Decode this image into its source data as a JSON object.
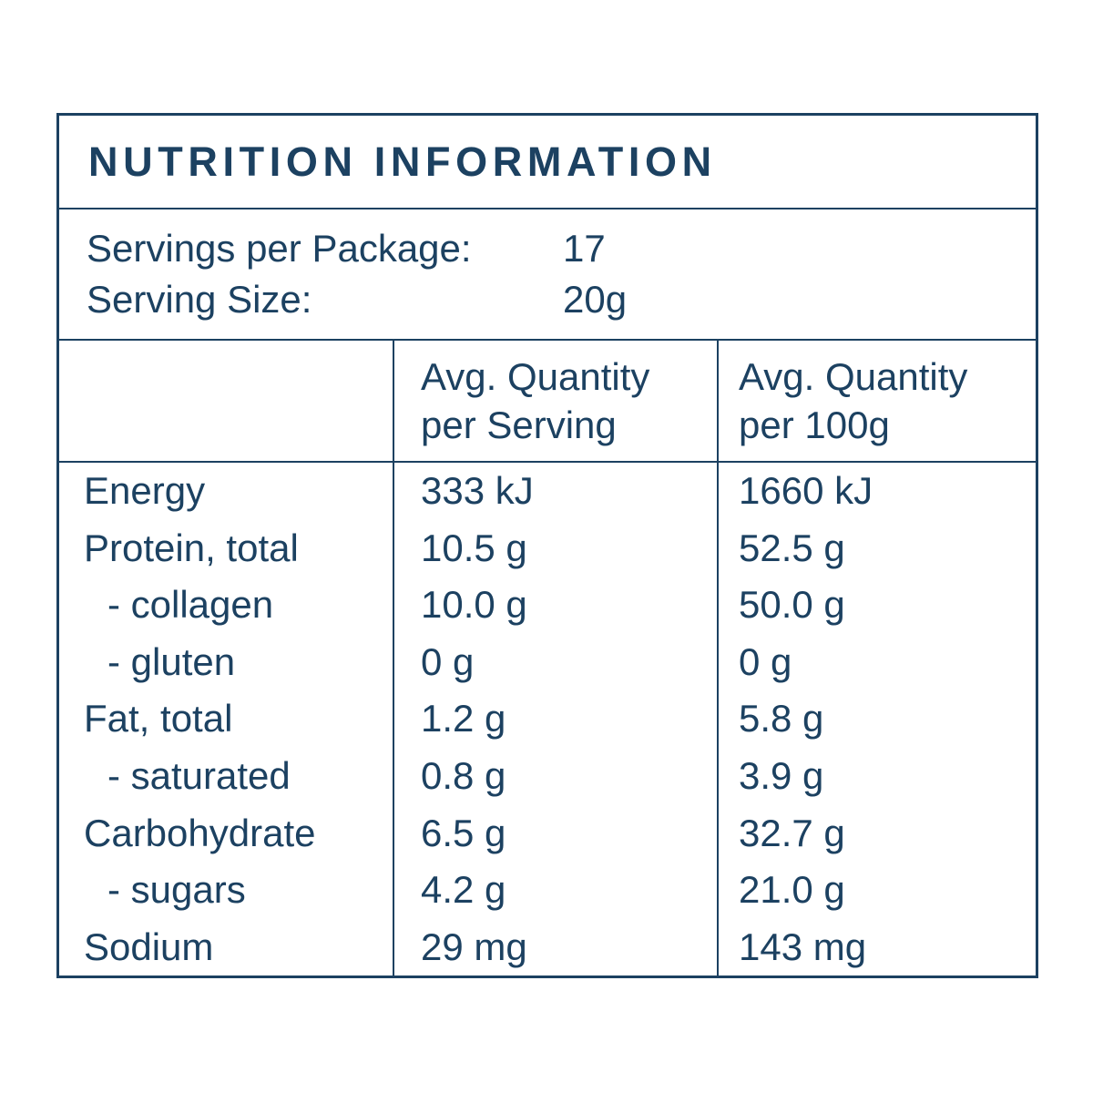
{
  "colors": {
    "ink": "#1c4161",
    "paper": "#ffffff"
  },
  "title": "NUTRITION INFORMATION",
  "servings": [
    {
      "label": "Servings per Package:",
      "value": "17"
    },
    {
      "label": "Serving Size:",
      "value": "20g"
    }
  ],
  "table": {
    "headers": {
      "per_serving": {
        "line1": "Avg. Quantity",
        "line2": "per Serving"
      },
      "per_100g": {
        "line1": "Avg. Quantity",
        "line2": "per 100g"
      }
    },
    "rows": [
      {
        "label": "Energy",
        "per_serving": "333 kJ",
        "per_100g": "1660 kJ"
      },
      {
        "label": "Protein, total",
        "per_serving": "10.5 g",
        "per_100g": "52.5 g"
      },
      {
        "label": "- collagen",
        "per_serving": "10.0 g",
        "per_100g": "50.0 g",
        "indent": true
      },
      {
        "label": "- gluten",
        "per_serving": "0 g",
        "per_100g": "0 g",
        "indent": true
      },
      {
        "label": "Fat, total",
        "per_serving": "1.2 g",
        "per_100g": "5.8 g"
      },
      {
        "label": "- saturated",
        "per_serving": "0.8 g",
        "per_100g": "3.9 g",
        "indent": true
      },
      {
        "label": "Carbohydrate",
        "per_serving": "6.5 g",
        "per_100g": "32.7 g"
      },
      {
        "label": "- sugars",
        "per_serving": "4.2 g",
        "per_100g": "21.0 g",
        "indent": true
      },
      {
        "label": "Sodium",
        "per_serving": "29 mg",
        "per_100g": "143 mg"
      }
    ]
  }
}
